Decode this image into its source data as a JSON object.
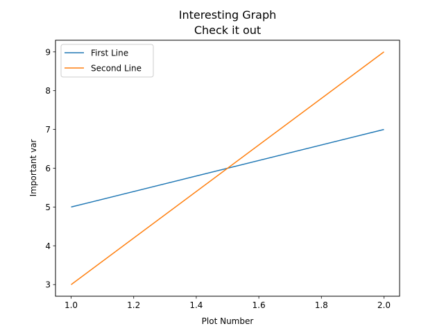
{
  "chart_data": {
    "type": "line",
    "title": "Interesting Graph",
    "subtitle": "Check it out",
    "xlabel": "Plot Number",
    "ylabel": "Important var",
    "x": [
      1.0,
      2.0
    ],
    "xlim": [
      0.95,
      2.05
    ],
    "ylim": [
      2.7,
      9.3
    ],
    "xticks": [
      1.0,
      1.2,
      1.4,
      1.6,
      1.8,
      2.0
    ],
    "xtick_labels": [
      "1.0",
      "1.2",
      "1.4",
      "1.6",
      "1.8",
      "2.0"
    ],
    "yticks": [
      3,
      4,
      5,
      6,
      7,
      8,
      9
    ],
    "ytick_labels": [
      "3",
      "4",
      "5",
      "6",
      "7",
      "8",
      "9"
    ],
    "grid": false,
    "legend_position": "top-left",
    "series": [
      {
        "name": "First Line",
        "values": [
          5,
          7
        ],
        "color": "#1f77b4"
      },
      {
        "name": "Second Line",
        "values": [
          3,
          9
        ],
        "color": "#ff7f0e"
      }
    ]
  }
}
